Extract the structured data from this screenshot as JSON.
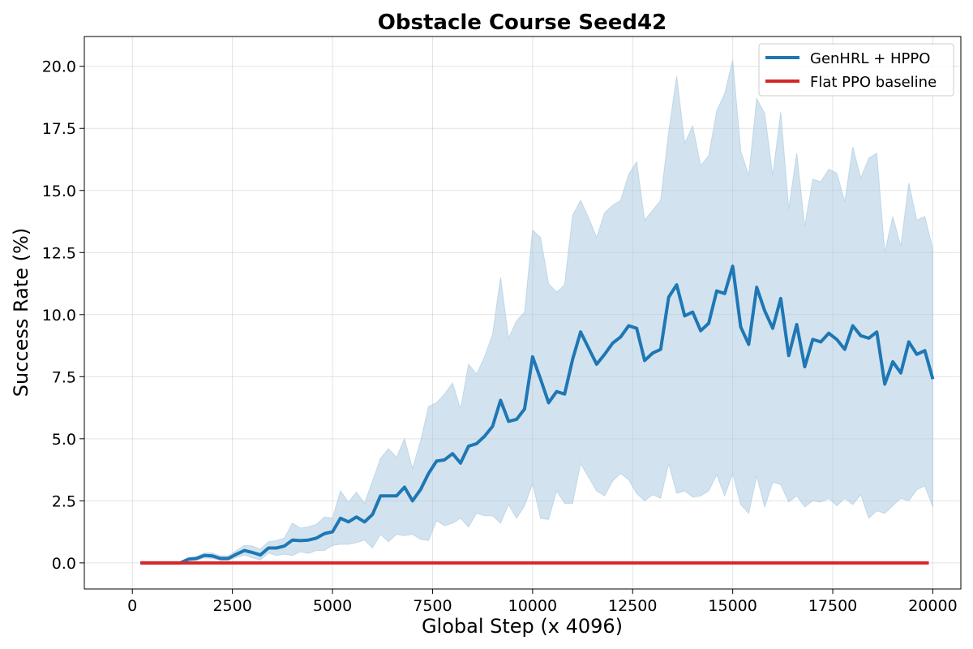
{
  "chart_data": {
    "type": "line",
    "title": "Obstacle Course Seed42",
    "xlabel": "Global Step (x 4096)",
    "ylabel": "Success Rate (%)",
    "xlim": [
      -1200,
      20700
    ],
    "ylim": [
      -1.05,
      21.2
    ],
    "xticks": [
      0,
      2500,
      5000,
      7500,
      10000,
      12500,
      15000,
      17500,
      20000
    ],
    "yticks": [
      0.0,
      2.5,
      5.0,
      7.5,
      10.0,
      12.5,
      15.0,
      17.5,
      20.0
    ],
    "grid": true,
    "legend_position": "top-right",
    "series": [
      {
        "name": "GenHRL + HPPO",
        "color": "#1f77b4",
        "band_color": "#a6c8e0",
        "x": [
          200,
          400,
          600,
          800,
          1000,
          1200,
          1400,
          1600,
          1800,
          2000,
          2200,
          2400,
          2600,
          2800,
          3000,
          3200,
          3400,
          3600,
          3800,
          4000,
          4200,
          4400,
          4600,
          4800,
          5000,
          5200,
          5400,
          5600,
          5800,
          6000,
          6200,
          6400,
          6600,
          6800,
          7000,
          7200,
          7400,
          7600,
          7800,
          8000,
          8200,
          8400,
          8600,
          8800,
          9000,
          9200,
          9400,
          9600,
          9800,
          10000,
          10200,
          10400,
          10600,
          10800,
          11000,
          11200,
          11400,
          11600,
          11800,
          12000,
          12200,
          12400,
          12600,
          12800,
          13000,
          13200,
          13400,
          13600,
          13800,
          14000,
          14200,
          14400,
          14600,
          14800,
          15000,
          15200,
          15400,
          15600,
          15800,
          16000,
          16200,
          16400,
          16600,
          16800,
          17000,
          17200,
          17400,
          17600,
          17800,
          18000,
          18200,
          18400,
          18600,
          18800,
          19000,
          19200,
          19400,
          19600,
          19800,
          20000
        ],
        "mean": [
          0.0,
          0.0,
          0.0,
          0.0,
          0.0,
          0.0,
          0.15,
          0.18,
          0.3,
          0.28,
          0.18,
          0.18,
          0.35,
          0.5,
          0.42,
          0.32,
          0.6,
          0.6,
          0.68,
          0.92,
          0.9,
          0.92,
          1.0,
          1.18,
          1.25,
          1.8,
          1.65,
          1.85,
          1.65,
          1.95,
          2.7,
          2.7,
          2.7,
          3.05,
          2.5,
          2.95,
          3.6,
          4.1,
          4.15,
          4.4,
          4.02,
          4.7,
          4.8,
          5.1,
          5.5,
          6.55,
          5.7,
          5.78,
          6.2,
          8.3,
          7.4,
          6.45,
          6.9,
          6.8,
          8.2,
          9.3,
          8.65,
          8.0,
          8.4,
          8.85,
          9.1,
          9.55,
          9.45,
          8.15,
          8.45,
          8.6,
          10.7,
          11.2,
          9.95,
          10.1,
          9.35,
          9.65,
          10.95,
          10.85,
          11.95,
          9.5,
          8.8,
          11.1,
          10.15,
          9.45,
          10.65,
          8.35,
          9.6,
          7.9,
          9.0,
          8.9,
          9.25,
          9.0,
          8.6,
          9.55,
          9.15,
          9.05,
          9.3,
          7.2,
          8.1,
          7.65,
          8.9,
          8.4,
          8.55,
          7.4
        ],
        "upper": [
          0.0,
          0.0,
          0.0,
          0.0,
          0.0,
          0.0,
          0.2,
          0.25,
          0.4,
          0.4,
          0.28,
          0.28,
          0.5,
          0.7,
          0.68,
          0.55,
          0.85,
          0.9,
          1.0,
          1.6,
          1.4,
          1.45,
          1.55,
          1.85,
          1.8,
          2.9,
          2.45,
          2.85,
          2.4,
          3.3,
          4.2,
          4.6,
          4.25,
          5.0,
          3.8,
          4.9,
          6.3,
          6.45,
          6.8,
          7.25,
          6.2,
          8.0,
          7.6,
          8.3,
          9.2,
          11.5,
          9.05,
          9.75,
          10.1,
          13.4,
          13.1,
          11.25,
          10.9,
          11.2,
          14.0,
          14.6,
          13.9,
          13.1,
          14.1,
          14.4,
          14.6,
          15.65,
          16.15,
          13.8,
          14.2,
          14.6,
          17.35,
          19.6,
          16.9,
          17.6,
          16.0,
          16.4,
          18.2,
          18.9,
          20.25,
          16.6,
          15.6,
          18.7,
          18.1,
          15.6,
          18.15,
          14.25,
          16.5,
          13.55,
          15.45,
          15.35,
          15.85,
          15.7,
          14.55,
          16.75,
          15.5,
          16.3,
          16.5,
          12.5,
          13.95,
          12.75,
          15.3,
          13.8,
          13.95,
          12.65
        ],
        "lower": [
          0.0,
          0.0,
          0.0,
          0.0,
          0.0,
          0.0,
          0.1,
          0.1,
          0.2,
          0.18,
          0.1,
          0.1,
          0.22,
          0.32,
          0.2,
          0.12,
          0.4,
          0.3,
          0.35,
          0.3,
          0.45,
          0.38,
          0.5,
          0.5,
          0.7,
          0.75,
          0.75,
          0.82,
          0.92,
          0.6,
          1.15,
          0.85,
          1.15,
          1.1,
          1.15,
          0.95,
          0.9,
          1.7,
          1.5,
          1.6,
          1.8,
          1.45,
          2.0,
          1.9,
          1.9,
          1.6,
          2.35,
          1.8,
          2.3,
          3.2,
          1.8,
          1.75,
          2.9,
          2.4,
          2.4,
          4.0,
          3.45,
          2.9,
          2.7,
          3.3,
          3.6,
          3.35,
          2.8,
          2.5,
          2.75,
          2.6,
          4.0,
          2.8,
          2.9,
          2.65,
          2.7,
          2.9,
          3.55,
          2.7,
          3.6,
          2.35,
          2.0,
          3.5,
          2.25,
          3.25,
          3.15,
          2.45,
          2.7,
          2.25,
          2.5,
          2.45,
          2.6,
          2.3,
          2.6,
          2.35,
          2.75,
          1.8,
          2.1,
          2.0,
          2.3,
          2.6,
          2.5,
          2.95,
          3.1,
          2.25
        ]
      },
      {
        "name": "Flat PPO baseline",
        "color": "#d62728",
        "x": [
          200,
          1000,
          2000,
          3000,
          4000,
          5000,
          6000,
          7000,
          8000,
          9000,
          10000,
          11000,
          12000,
          13000,
          14000,
          15000,
          16000,
          17000,
          18000,
          19000,
          19900
        ],
        "mean": [
          0,
          0,
          0,
          0,
          0,
          0,
          0,
          0,
          0,
          0,
          0,
          0,
          0,
          0,
          0,
          0,
          0,
          0,
          0,
          0,
          0
        ]
      }
    ]
  }
}
